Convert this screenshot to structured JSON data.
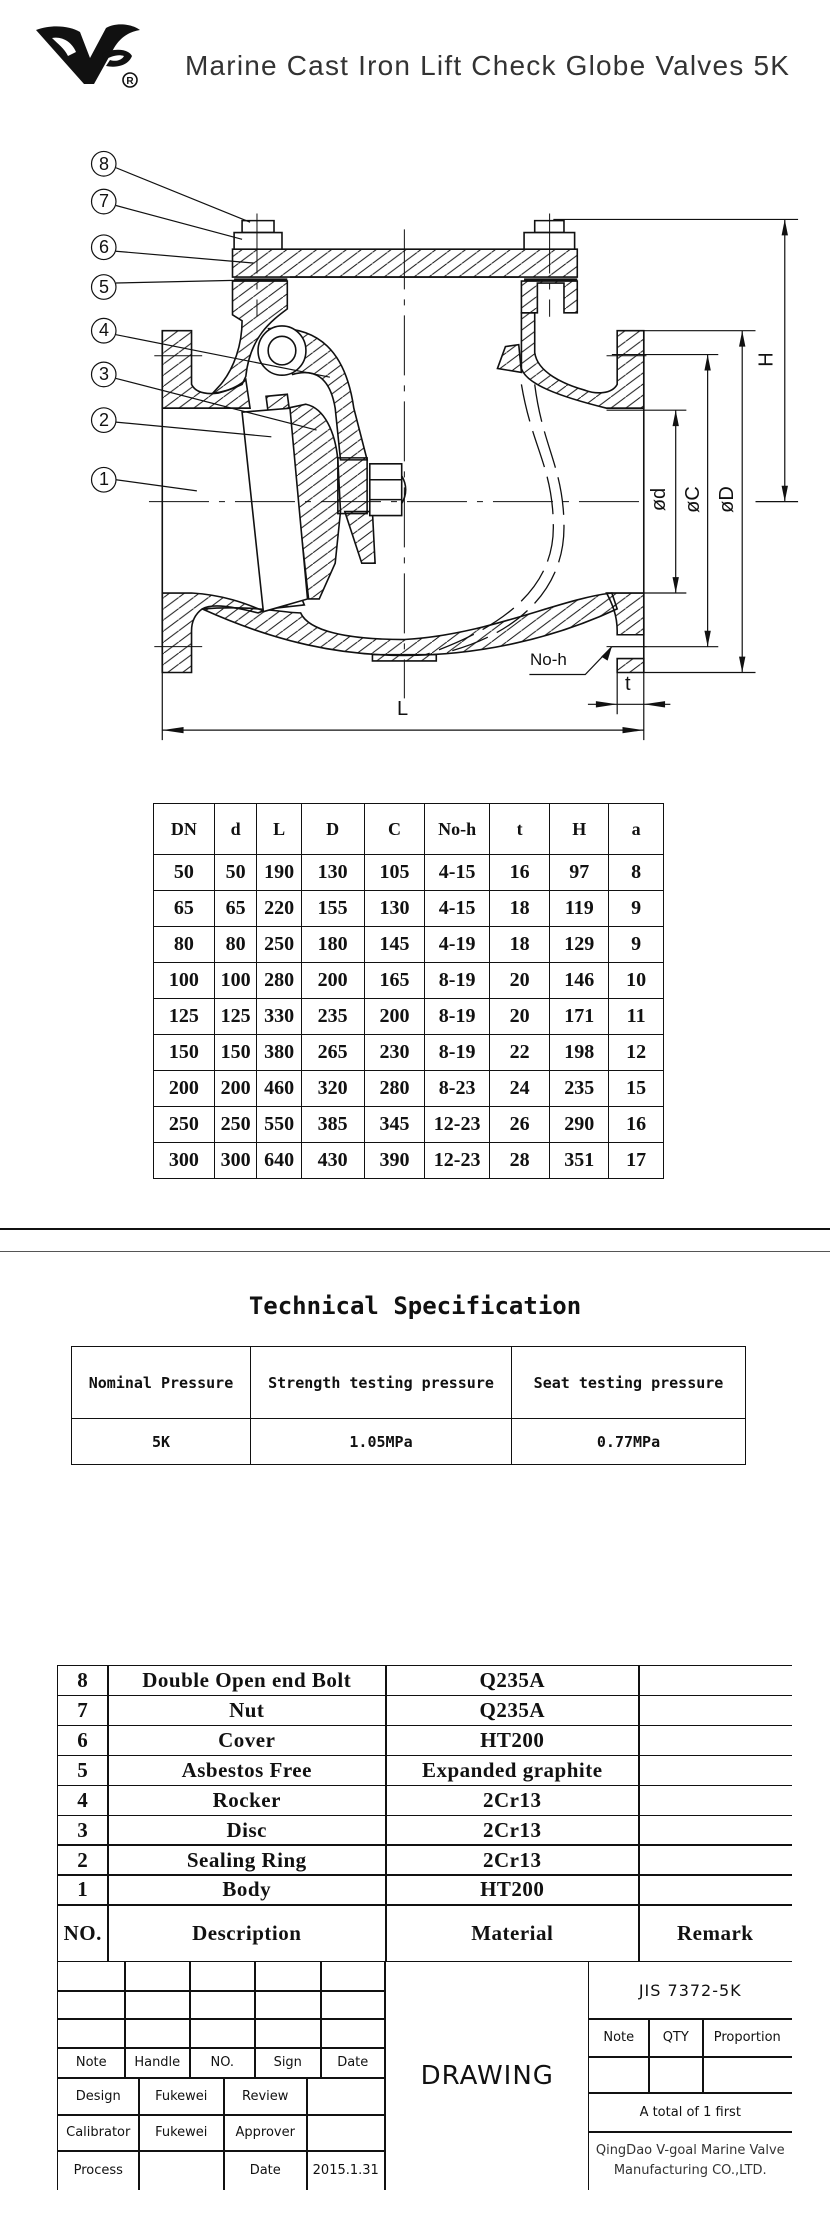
{
  "header": {
    "title": "Marine Cast Iron Lift Check Globe Valves 5K",
    "logo": {
      "text": "VG",
      "registered": "®"
    }
  },
  "drawing": {
    "callouts": [
      "8",
      "7",
      "6",
      "5",
      "4",
      "3",
      "2",
      "1"
    ],
    "labels": {
      "H": "H",
      "d": "ød",
      "C": "øC",
      "D": "øD",
      "L": "L",
      "t": "t",
      "noh": "No-h"
    }
  },
  "dims_table": {
    "headers": [
      "DN",
      "d",
      "L",
      "D",
      "C",
      "No-h",
      "t",
      "H",
      "a"
    ],
    "rows": [
      [
        "50",
        "50",
        "190",
        "130",
        "105",
        "4-15",
        "16",
        "97",
        "8"
      ],
      [
        "65",
        "65",
        "220",
        "155",
        "130",
        "4-15",
        "18",
        "119",
        "9"
      ],
      [
        "80",
        "80",
        "250",
        "180",
        "145",
        "4-19",
        "18",
        "129",
        "9"
      ],
      [
        "100",
        "100",
        "280",
        "200",
        "165",
        "8-19",
        "20",
        "146",
        "10"
      ],
      [
        "125",
        "125",
        "330",
        "235",
        "200",
        "8-19",
        "20",
        "171",
        "11"
      ],
      [
        "150",
        "150",
        "380",
        "265",
        "230",
        "8-19",
        "22",
        "198",
        "12"
      ],
      [
        "200",
        "200",
        "460",
        "320",
        "280",
        "8-23",
        "24",
        "235",
        "15"
      ],
      [
        "250",
        "250",
        "550",
        "385",
        "345",
        "12-23",
        "26",
        "290",
        "16"
      ],
      [
        "300",
        "300",
        "640",
        "430",
        "390",
        "12-23",
        "28",
        "351",
        "17"
      ]
    ]
  },
  "spec": {
    "title": "Technical Specification",
    "headers": [
      "Nominal Pressure",
      "Strength testing pressure",
      "Seat testing pressure"
    ],
    "values": [
      "5K",
      "1.05MPa",
      "0.77MPa"
    ]
  },
  "parts": {
    "rows": [
      {
        "no": "8",
        "desc": "Double Open end Bolt",
        "mat": "Q235A",
        "remark": ""
      },
      {
        "no": "7",
        "desc": "Nut",
        "mat": "Q235A",
        "remark": ""
      },
      {
        "no": "6",
        "desc": "Cover",
        "mat": "HT200",
        "remark": ""
      },
      {
        "no": "5",
        "desc": "Asbestos Free",
        "mat": "Expanded graphite",
        "remark": ""
      },
      {
        "no": "4",
        "desc": "Rocker",
        "mat": "2Cr13",
        "remark": ""
      },
      {
        "no": "3",
        "desc": "Disc",
        "mat": "2Cr13",
        "remark": ""
      },
      {
        "no": "2",
        "desc": "Sealing Ring",
        "mat": "2Cr13",
        "remark": ""
      },
      {
        "no": "1",
        "desc": "Body",
        "mat": "HT200",
        "remark": ""
      }
    ],
    "header": {
      "no": "NO.",
      "desc": "Description",
      "mat": "Material",
      "remark": "Remark"
    }
  },
  "title_block": {
    "revision_headers": [
      "Note",
      "Handle",
      "NO.",
      "Sign",
      "Date"
    ],
    "signoff": [
      [
        "Design",
        "Fukewei",
        "Review",
        ""
      ],
      [
        "Calibrator",
        "Fukewei",
        "Approver",
        ""
      ],
      [
        "Process",
        "",
        "Date",
        "2015.1.31"
      ]
    ],
    "drawing_label": "DRAWING",
    "standard": "JIS 7372-5K",
    "info_headers": [
      "Note",
      "QTY",
      "Proportion"
    ],
    "sheets": "A total of 1 first",
    "company_line1": "QingDao V-goal Marine Valve",
    "company_line2": "Manufacturing CO.,LTD."
  }
}
